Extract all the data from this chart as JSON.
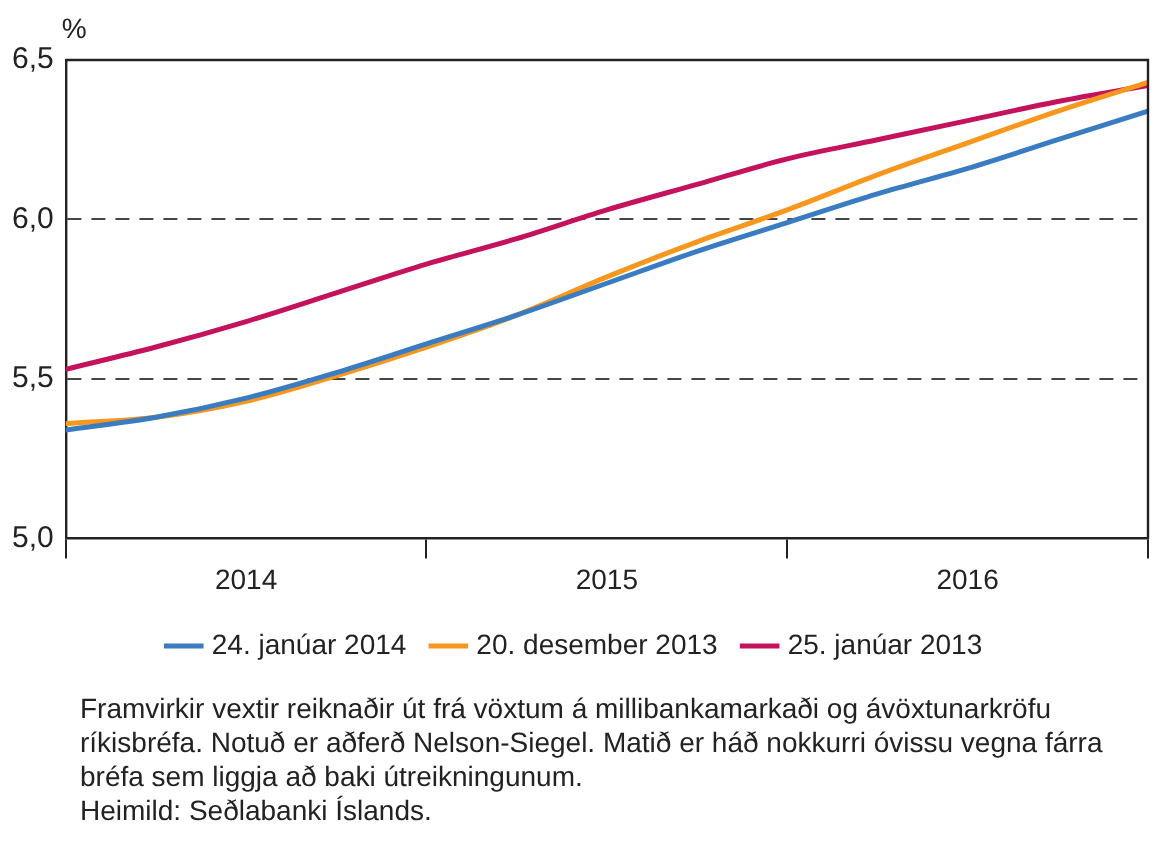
{
  "chart_data": {
    "type": "line",
    "ylabel": "%",
    "x": [
      2014,
      2014.25,
      2014.5,
      2014.75,
      2015,
      2015.25,
      2015.5,
      2015.75,
      2016,
      2016.25,
      2016.5,
      2016.75,
      2017
    ],
    "series": [
      {
        "name": "24. janúar 2014",
        "color": "#3a7cc1",
        "values": [
          5.34,
          5.38,
          5.44,
          5.52,
          5.61,
          5.7,
          5.8,
          5.9,
          5.99,
          6.08,
          6.16,
          6.25,
          6.34
        ]
      },
      {
        "name": "20. desember 2013",
        "color": "#f7971d",
        "values": [
          5.36,
          5.38,
          5.43,
          5.51,
          5.6,
          5.7,
          5.82,
          5.93,
          6.03,
          6.14,
          6.24,
          6.34,
          6.43
        ]
      },
      {
        "name": "25. janúar 2013",
        "color": "#c4135c",
        "values": [
          5.53,
          5.6,
          5.68,
          5.77,
          5.86,
          5.94,
          6.03,
          6.11,
          6.19,
          6.25,
          6.31,
          6.37,
          6.42
        ]
      }
    ],
    "xlim": [
      2014,
      2017
    ],
    "xticks": [
      {
        "value": 2014,
        "label": null
      },
      {
        "value": 2014.5,
        "label": "2014"
      },
      {
        "value": 2015,
        "label": null
      },
      {
        "value": 2015.5,
        "label": "2015"
      },
      {
        "value": 2016,
        "label": null
      },
      {
        "value": 2016.5,
        "label": "2016"
      },
      {
        "value": 2017,
        "label": null
      }
    ],
    "ylim": [
      5,
      6.5
    ],
    "yticks": [
      {
        "value": 5,
        "label": "5,0"
      },
      {
        "value": 5.5,
        "label": "5,5"
      },
      {
        "value": 6,
        "label": "6,0"
      },
      {
        "value": 6.5,
        "label": "6,5"
      }
    ],
    "grid": "y",
    "legend": "bottom",
    "marker": "none",
    "line_style": "solid",
    "annotations": [
      "Framvirkir vextir reiknaðir út frá vöxtum á millibankamarkaði og ávöxtunarkröfu ríkisbréfa. Notuð er aðferð Nelson-Siegel. Matið er háð nokkurri óvissu vegna fárra bréfa sem liggja að baki útreikningunum.",
      "Heimild: Seðlabanki Íslands."
    ]
  }
}
